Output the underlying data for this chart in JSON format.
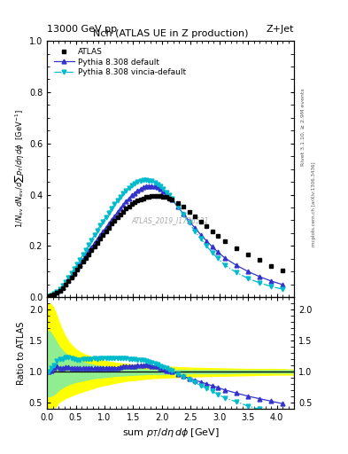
{
  "title": "Nch (ATLAS UE in Z production)",
  "header_left": "13000 GeV pp",
  "header_right": "Z+Jet",
  "watermark": "ATLAS_2019_I1736531",
  "rivet_label": "Rivet 3.1.10, ≥ 2.9M events",
  "mcplots_label": "mcplots.cern.ch [arXiv:1306.3436]",
  "xlabel": "sum p_{T}/dη dφ [GeV]",
  "ylabel": "1/N_{ev} dN_{ev}/dsum p_{T}/dη dφ  [GeV⁻¹]",
  "ylabel_ratio": "Ratio to ATLAS",
  "xlim": [
    0,
    4.3
  ],
  "ylim_main": [
    0,
    1.0
  ],
  "ylim_ratio": [
    0.4,
    2.2
  ],
  "yticks_main": [
    0,
    0.2,
    0.4,
    0.6,
    0.8,
    1.0
  ],
  "yticks_ratio": [
    0.5,
    1.0,
    1.5,
    2.0
  ],
  "atlas_x": [
    0.025,
    0.075,
    0.125,
    0.175,
    0.225,
    0.275,
    0.325,
    0.375,
    0.425,
    0.475,
    0.525,
    0.575,
    0.625,
    0.675,
    0.725,
    0.775,
    0.825,
    0.875,
    0.925,
    0.975,
    1.025,
    1.075,
    1.125,
    1.175,
    1.225,
    1.275,
    1.325,
    1.375,
    1.425,
    1.475,
    1.525,
    1.575,
    1.625,
    1.675,
    1.725,
    1.775,
    1.825,
    1.875,
    1.925,
    1.975,
    2.025,
    2.075,
    2.125,
    2.175,
    2.275,
    2.375,
    2.475,
    2.575,
    2.675,
    2.775,
    2.875,
    2.975,
    3.1,
    3.3,
    3.5,
    3.7,
    3.9,
    4.1
  ],
  "atlas_y": [
    0.005,
    0.008,
    0.012,
    0.018,
    0.026,
    0.036,
    0.048,
    0.062,
    0.076,
    0.092,
    0.107,
    0.122,
    0.138,
    0.153,
    0.168,
    0.184,
    0.198,
    0.213,
    0.228,
    0.242,
    0.258,
    0.272,
    0.286,
    0.298,
    0.312,
    0.323,
    0.334,
    0.345,
    0.354,
    0.362,
    0.37,
    0.376,
    0.381,
    0.386,
    0.39,
    0.393,
    0.395,
    0.396,
    0.396,
    0.395,
    0.393,
    0.39,
    0.386,
    0.381,
    0.368,
    0.352,
    0.334,
    0.315,
    0.296,
    0.277,
    0.258,
    0.24,
    0.218,
    0.192,
    0.167,
    0.145,
    0.123,
    0.103
  ],
  "pythia_default_x": [
    0.025,
    0.075,
    0.125,
    0.175,
    0.225,
    0.275,
    0.325,
    0.375,
    0.425,
    0.475,
    0.525,
    0.575,
    0.625,
    0.675,
    0.725,
    0.775,
    0.825,
    0.875,
    0.925,
    0.975,
    1.025,
    1.075,
    1.125,
    1.175,
    1.225,
    1.275,
    1.325,
    1.375,
    1.425,
    1.475,
    1.525,
    1.575,
    1.625,
    1.675,
    1.725,
    1.775,
    1.825,
    1.875,
    1.925,
    1.975,
    2.025,
    2.075,
    2.125,
    2.175,
    2.275,
    2.375,
    2.475,
    2.575,
    2.675,
    2.775,
    2.875,
    2.975,
    3.1,
    3.3,
    3.5,
    3.7,
    3.9,
    4.1
  ],
  "pythia_default_y": [
    0.005,
    0.009,
    0.014,
    0.02,
    0.028,
    0.039,
    0.052,
    0.067,
    0.082,
    0.098,
    0.113,
    0.129,
    0.146,
    0.163,
    0.179,
    0.195,
    0.211,
    0.226,
    0.241,
    0.256,
    0.272,
    0.286,
    0.3,
    0.316,
    0.331,
    0.346,
    0.36,
    0.374,
    0.386,
    0.397,
    0.406,
    0.415,
    0.422,
    0.428,
    0.432,
    0.434,
    0.434,
    0.432,
    0.428,
    0.421,
    0.413,
    0.403,
    0.392,
    0.38,
    0.353,
    0.325,
    0.297,
    0.27,
    0.244,
    0.22,
    0.197,
    0.176,
    0.152,
    0.124,
    0.1,
    0.08,
    0.063,
    0.049
  ],
  "pythia_vincia_x": [
    0.025,
    0.075,
    0.125,
    0.175,
    0.225,
    0.275,
    0.325,
    0.375,
    0.425,
    0.475,
    0.525,
    0.575,
    0.625,
    0.675,
    0.725,
    0.775,
    0.825,
    0.875,
    0.925,
    0.975,
    1.025,
    1.075,
    1.125,
    1.175,
    1.225,
    1.275,
    1.325,
    1.375,
    1.425,
    1.475,
    1.525,
    1.575,
    1.625,
    1.675,
    1.725,
    1.775,
    1.825,
    1.875,
    1.925,
    1.975,
    2.025,
    2.075,
    2.125,
    2.175,
    2.275,
    2.375,
    2.475,
    2.575,
    2.675,
    2.775,
    2.875,
    2.975,
    3.1,
    3.3,
    3.5,
    3.7,
    3.9,
    4.1
  ],
  "pythia_vincia_y": [
    0.005,
    0.009,
    0.014,
    0.021,
    0.031,
    0.044,
    0.06,
    0.077,
    0.094,
    0.111,
    0.128,
    0.146,
    0.165,
    0.184,
    0.203,
    0.223,
    0.242,
    0.261,
    0.279,
    0.296,
    0.313,
    0.33,
    0.347,
    0.363,
    0.378,
    0.392,
    0.405,
    0.417,
    0.427,
    0.436,
    0.443,
    0.449,
    0.453,
    0.456,
    0.457,
    0.455,
    0.452,
    0.447,
    0.44,
    0.432,
    0.422,
    0.41,
    0.398,
    0.384,
    0.354,
    0.322,
    0.29,
    0.258,
    0.228,
    0.2,
    0.174,
    0.151,
    0.124,
    0.096,
    0.073,
    0.056,
    0.042,
    0.031
  ],
  "band_yellow_x": [
    0.0,
    0.05,
    0.1,
    0.15,
    0.2,
    0.25,
    0.3,
    0.35,
    0.4,
    0.5,
    0.6,
    0.7,
    0.8,
    0.9,
    1.0,
    1.2,
    1.4,
    1.6,
    1.8,
    2.0,
    2.5,
    3.0,
    3.5,
    4.0,
    4.3
  ],
  "band_yellow_low": [
    0.42,
    0.42,
    0.42,
    0.43,
    0.5,
    0.53,
    0.56,
    0.58,
    0.6,
    0.64,
    0.67,
    0.7,
    0.73,
    0.76,
    0.78,
    0.82,
    0.85,
    0.87,
    0.89,
    0.9,
    0.92,
    0.93,
    0.94,
    0.95,
    0.95
  ],
  "band_yellow_high": [
    2.1,
    2.1,
    2.05,
    1.95,
    1.82,
    1.7,
    1.6,
    1.52,
    1.45,
    1.36,
    1.3,
    1.26,
    1.23,
    1.2,
    1.17,
    1.14,
    1.12,
    1.1,
    1.09,
    1.08,
    1.06,
    1.05,
    1.04,
    1.04,
    1.03
  ],
  "band_green_x": [
    0.0,
    0.05,
    0.1,
    0.15,
    0.2,
    0.25,
    0.3,
    0.35,
    0.4,
    0.5,
    0.6,
    0.7,
    0.8,
    0.9,
    1.0,
    1.2,
    1.4,
    1.6,
    1.8,
    2.0,
    2.5,
    3.0,
    3.5,
    4.0,
    4.3
  ],
  "band_green_low": [
    0.6,
    0.6,
    0.62,
    0.65,
    0.7,
    0.73,
    0.76,
    0.78,
    0.8,
    0.83,
    0.85,
    0.87,
    0.89,
    0.9,
    0.91,
    0.93,
    0.94,
    0.95,
    0.96,
    0.96,
    0.97,
    0.97,
    0.98,
    0.98,
    0.98
  ],
  "band_green_high": [
    1.65,
    1.65,
    1.58,
    1.5,
    1.42,
    1.36,
    1.31,
    1.27,
    1.24,
    1.19,
    1.16,
    1.13,
    1.11,
    1.09,
    1.08,
    1.06,
    1.05,
    1.04,
    1.03,
    1.03,
    1.02,
    1.02,
    1.02,
    1.02,
    1.02
  ],
  "ratio_pythia_default_y": [
    1.0,
    1.02,
    1.05,
    1.08,
    1.06,
    1.05,
    1.07,
    1.07,
    1.06,
    1.06,
    1.05,
    1.05,
    1.06,
    1.06,
    1.06,
    1.05,
    1.05,
    1.06,
    1.05,
    1.06,
    1.06,
    1.05,
    1.05,
    1.06,
    1.06,
    1.07,
    1.08,
    1.09,
    1.09,
    1.09,
    1.09,
    1.1,
    1.1,
    1.1,
    1.11,
    1.1,
    1.09,
    1.09,
    1.08,
    1.06,
    1.04,
    1.02,
    1.01,
    1.0,
    0.96,
    0.92,
    0.89,
    0.86,
    0.83,
    0.8,
    0.77,
    0.74,
    0.7,
    0.65,
    0.6,
    0.56,
    0.52,
    0.48
  ],
  "ratio_pythia_vincia_y": [
    1.0,
    1.05,
    1.1,
    1.17,
    1.2,
    1.2,
    1.23,
    1.23,
    1.22,
    1.2,
    1.19,
    1.19,
    1.2,
    1.2,
    1.2,
    1.2,
    1.21,
    1.2,
    1.22,
    1.22,
    1.21,
    1.21,
    1.21,
    1.21,
    1.21,
    1.21,
    1.21,
    1.21,
    1.2,
    1.2,
    1.2,
    1.19,
    1.19,
    1.18,
    1.17,
    1.16,
    1.14,
    1.13,
    1.11,
    1.09,
    1.07,
    1.05,
    1.03,
    1.01,
    0.96,
    0.91,
    0.87,
    0.82,
    0.77,
    0.73,
    0.68,
    0.63,
    0.57,
    0.51,
    0.44,
    0.39,
    0.34,
    0.3
  ],
  "color_atlas": "#000000",
  "color_pythia_default": "#3333cc",
  "color_pythia_vincia": "#00bbcc",
  "color_band_yellow": "#ffff00",
  "color_band_green": "#90ee90",
  "background_color": "#ffffff"
}
